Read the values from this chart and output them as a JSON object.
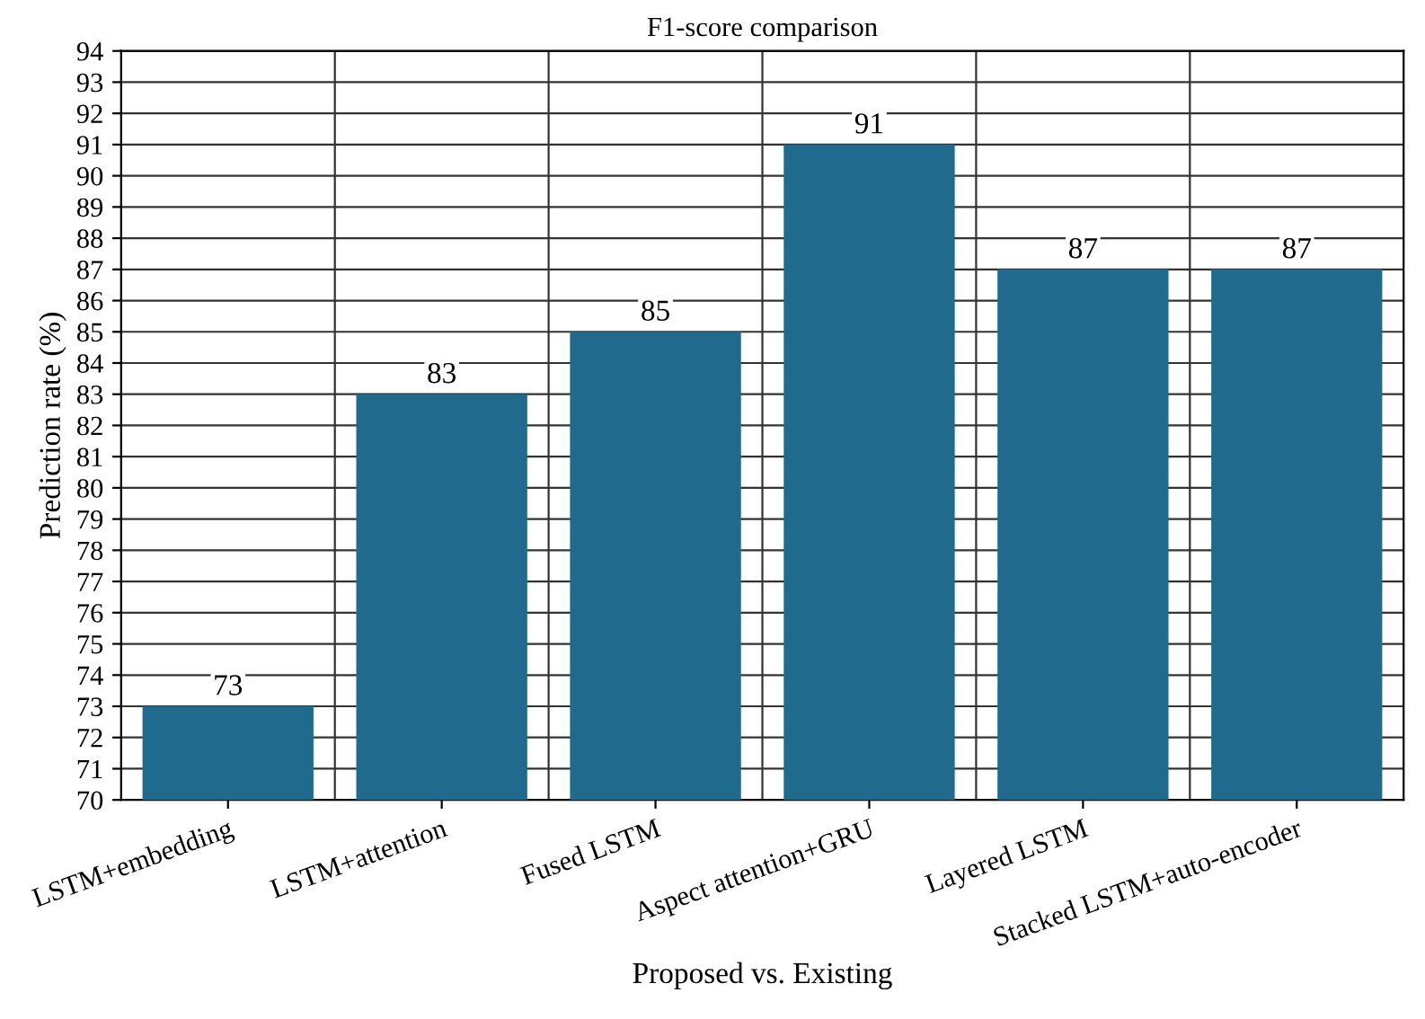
{
  "chart_data": {
    "type": "bar",
    "title": "F1-score comparison",
    "xlabel": "Proposed vs. Existing",
    "ylabel": "Prediction rate (%)",
    "categories": [
      "LSTM+embedding",
      "LSTM+attention",
      "Fused LSTM",
      "Aspect attention+GRU",
      "Layered LSTM",
      "Stacked LSTM+auto-encoder"
    ],
    "values": [
      73,
      83,
      85,
      91,
      87,
      87
    ],
    "color": "#1f6a8d",
    "ylim": [
      70,
      94
    ],
    "yticks": [
      70,
      71,
      72,
      73,
      74,
      75,
      76,
      77,
      78,
      79,
      80,
      81,
      82,
      83,
      84,
      85,
      86,
      87,
      88,
      89,
      90,
      91,
      92,
      93,
      94
    ],
    "grid": true,
    "data_labels": true
  }
}
